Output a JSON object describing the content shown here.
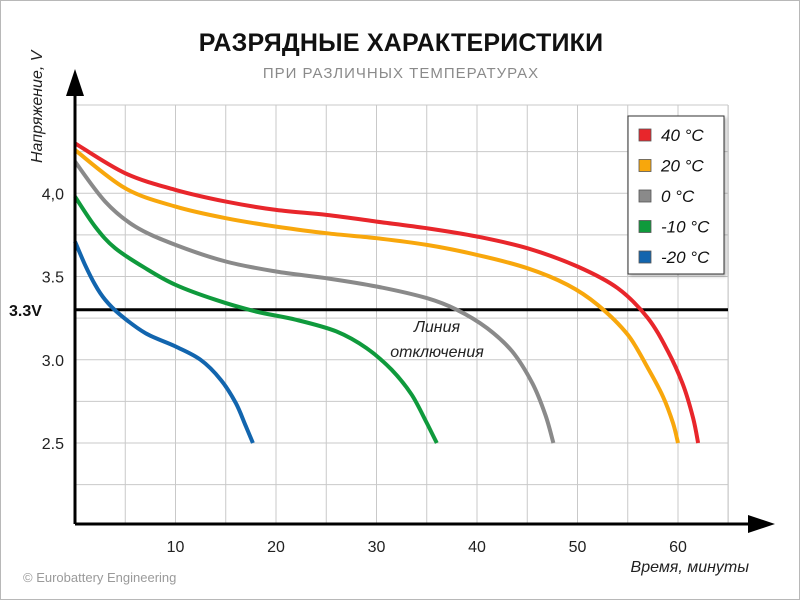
{
  "title": "РАЗРЯДНЫЕ ХАРАКТЕРИСТИКИ",
  "subtitle": "ПРИ РАЗЛИЧНЫХ ТЕМПЕРАТУРАХ",
  "copyright": "© Eurobattery Engineering",
  "chart_data": {
    "type": "line",
    "title": "РАЗРЯДНЫЕ ХАРАКТЕРИСТИКИ",
    "subtitle": "ПРИ РАЗЛИЧНЫХ ТЕМПЕРАТУРАХ",
    "xlabel": "Время, минуты",
    "ylabel": "Напряжение, V",
    "xlim": [
      0,
      65
    ],
    "ylim": [
      2.0,
      4.4
    ],
    "x_ticks": [
      10,
      20,
      30,
      40,
      50,
      60
    ],
    "x_tick_labels": [
      "10",
      "20",
      "30",
      "40",
      "50",
      "60"
    ],
    "y_ticks": [
      2.5,
      3.0,
      3.5,
      4.0
    ],
    "y_tick_labels": [
      "2.5",
      "3.0",
      "3.5",
      "4,0"
    ],
    "grid": true,
    "legend_position": "top-right",
    "cutoff": {
      "value": 3.3,
      "label": "3.3V",
      "annotation_line1": "Линия",
      "annotation_line2": "отключения"
    },
    "series": [
      {
        "name": "40 °C",
        "color": "#e8262b",
        "x": [
          0,
          5,
          10,
          15,
          20,
          25,
          30,
          35,
          40,
          45,
          50,
          54,
          57,
          59,
          60.5,
          61.5,
          62
        ],
        "y": [
          4.3,
          4.12,
          4.02,
          3.95,
          3.9,
          3.87,
          3.83,
          3.79,
          3.74,
          3.67,
          3.56,
          3.43,
          3.25,
          3.05,
          2.85,
          2.65,
          2.5
        ]
      },
      {
        "name": "20 °C",
        "color": "#f8a70c",
        "x": [
          0,
          5,
          10,
          15,
          20,
          25,
          30,
          35,
          40,
          45,
          49,
          52,
          55,
          57,
          58.5,
          59.5,
          60
        ],
        "y": [
          4.26,
          4.03,
          3.92,
          3.85,
          3.8,
          3.76,
          3.73,
          3.69,
          3.63,
          3.55,
          3.45,
          3.33,
          3.15,
          2.95,
          2.78,
          2.62,
          2.5
        ]
      },
      {
        "name": "0 °C",
        "color": "#8a8a8a",
        "x": [
          0,
          3,
          6,
          10,
          15,
          20,
          25,
          30,
          35,
          38,
          41,
          43.5,
          45.5,
          46.8,
          47.6
        ],
        "y": [
          4.19,
          3.95,
          3.8,
          3.69,
          3.59,
          3.53,
          3.49,
          3.44,
          3.37,
          3.3,
          3.19,
          3.05,
          2.86,
          2.67,
          2.5
        ]
      },
      {
        "name": "-10 °C",
        "color": "#0f9a3c",
        "x": [
          0,
          2,
          4,
          7,
          10,
          14,
          18,
          22,
          26,
          29,
          31.5,
          33.5,
          35,
          36
        ],
        "y": [
          3.98,
          3.8,
          3.67,
          3.55,
          3.45,
          3.36,
          3.29,
          3.24,
          3.17,
          3.07,
          2.94,
          2.79,
          2.62,
          2.5
        ]
      },
      {
        "name": "-20 °C",
        "color": "#1265ae",
        "x": [
          0,
          1,
          2,
          3,
          4.5,
          7,
          10,
          12.5,
          14.5,
          16,
          17,
          17.7
        ],
        "y": [
          3.71,
          3.57,
          3.45,
          3.36,
          3.27,
          3.16,
          3.08,
          3.0,
          2.88,
          2.74,
          2.6,
          2.5
        ]
      }
    ]
  }
}
